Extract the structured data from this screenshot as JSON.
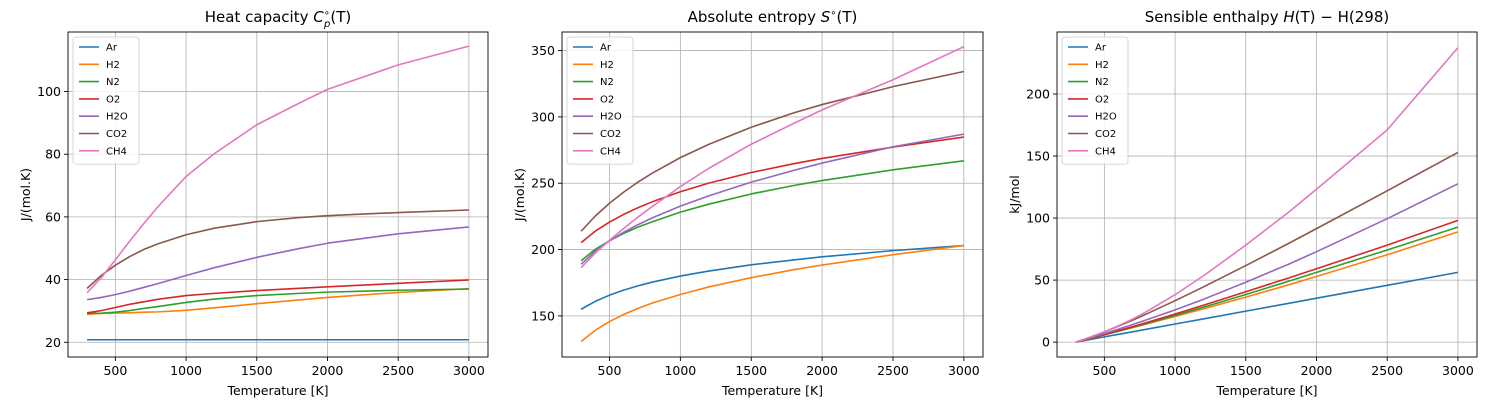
{
  "chart_data": [
    {
      "type": "line",
      "title": "Heat capacity Cₚ°(T)",
      "title_main": "Heat capacity ",
      "title_math": "C",
      "title_sub": "p",
      "title_sup": "∘",
      "title_tail": "(T)",
      "xlabel": "Temperature [K]",
      "ylabel": "J/(mol.K)",
      "xlim": [
        165,
        3135
      ],
      "ylim": [
        15.3,
        119
      ],
      "xticks": [
        500,
        1000,
        1500,
        2000,
        2500,
        3000
      ],
      "yticks": [
        20,
        40,
        60,
        80,
        100
      ],
      "grid": true,
      "legend": "top-left",
      "x": [
        300,
        400,
        500,
        600,
        700,
        800,
        1000,
        1200,
        1500,
        1800,
        2000,
        2500,
        3000
      ],
      "series": [
        {
          "name": "Ar",
          "color": "#1f77b4",
          "values": [
            20.8,
            20.8,
            20.8,
            20.8,
            20.8,
            20.8,
            20.8,
            20.8,
            20.8,
            20.8,
            20.8,
            20.8,
            20.8
          ]
        },
        {
          "name": "H2",
          "color": "#ff7f0e",
          "values": [
            28.9,
            29.2,
            29.3,
            29.4,
            29.6,
            29.7,
            30.2,
            31.0,
            32.3,
            33.5,
            34.3,
            35.9,
            37.1
          ]
        },
        {
          "name": "N2",
          "color": "#2ca02c",
          "values": [
            29.2,
            29.3,
            29.6,
            30.1,
            30.8,
            31.4,
            32.7,
            33.8,
            34.9,
            35.6,
            36.0,
            36.6,
            37.0
          ]
        },
        {
          "name": "O2",
          "color": "#d62728",
          "values": [
            29.4,
            30.1,
            31.1,
            32.1,
            32.9,
            33.7,
            34.9,
            35.6,
            36.5,
            37.2,
            37.7,
            38.8,
            39.9
          ]
        },
        {
          "name": "H2O",
          "color": "#9467bd",
          "values": [
            33.6,
            34.3,
            35.2,
            36.3,
            37.5,
            38.7,
            41.3,
            43.8,
            47.1,
            49.9,
            51.6,
            54.6,
            56.8
          ]
        },
        {
          "name": "CO2",
          "color": "#8c564b",
          "values": [
            37.2,
            41.3,
            44.6,
            47.3,
            49.6,
            51.4,
            54.3,
            56.4,
            58.5,
            59.8,
            60.4,
            61.4,
            62.2
          ]
        },
        {
          "name": "CH4",
          "color": "#e377c2",
          "values": [
            35.8,
            40.6,
            46.3,
            52.2,
            57.8,
            63.2,
            72.9,
            80.2,
            89.4,
            96.3,
            100.7,
            108.5,
            114.5
          ]
        }
      ]
    },
    {
      "type": "line",
      "title": "Absolute entropy S°(T)",
      "title_main": "Absolute entropy ",
      "title_math": "S",
      "title_sub": "",
      "title_sup": "∘",
      "title_tail": "(T)",
      "xlabel": "Temperature [K]",
      "ylabel": "J/(mol.K)",
      "xlim": [
        165,
        3135
      ],
      "ylim": [
        119,
        364
      ],
      "xticks": [
        500,
        1000,
        1500,
        2000,
        2500,
        3000
      ],
      "yticks": [
        150,
        200,
        250,
        300,
        350
      ],
      "grid": true,
      "legend": "top-left",
      "x": [
        300,
        400,
        500,
        600,
        700,
        800,
        1000,
        1200,
        1500,
        1800,
        2000,
        2500,
        3000
      ],
      "series": [
        {
          "name": "Ar",
          "color": "#1f77b4",
          "values": [
            155.0,
            161.0,
            165.6,
            169.4,
            172.6,
            175.4,
            180.0,
            183.8,
            188.5,
            192.2,
            194.5,
            199.2,
            203.0
          ]
        },
        {
          "name": "H2",
          "color": "#ff7f0e",
          "values": [
            130.7,
            139.2,
            145.7,
            151.1,
            155.6,
            159.6,
            166.1,
            171.8,
            178.8,
            184.8,
            188.3,
            196.1,
            203.0
          ]
        },
        {
          "name": "N2",
          "color": "#2ca02c",
          "values": [
            191.6,
            200.2,
            206.7,
            212.2,
            216.9,
            220.9,
            228.2,
            234.2,
            241.9,
            248.3,
            252.0,
            260.1,
            266.9
          ]
        },
        {
          "name": "O2",
          "color": "#d62728",
          "values": [
            205.2,
            213.9,
            220.7,
            226.5,
            231.5,
            235.9,
            243.6,
            250.1,
            258.1,
            264.7,
            268.7,
            277.2,
            284.8
          ]
        },
        {
          "name": "H2O",
          "color": "#9467bd",
          "values": [
            188.9,
            198.8,
            206.5,
            213.1,
            218.7,
            223.8,
            232.7,
            240.5,
            250.8,
            259.7,
            265.2,
            277.5,
            287.0
          ]
        },
        {
          "name": "CO2",
          "color": "#8c564b",
          "values": [
            213.8,
            225.3,
            234.9,
            243.3,
            250.8,
            257.5,
            269.3,
            279.3,
            292.2,
            303.0,
            309.3,
            322.8,
            334.2
          ]
        },
        {
          "name": "CH4",
          "color": "#e377c2",
          "values": [
            186.3,
            197.4,
            207.0,
            215.9,
            224.4,
            232.3,
            247.5,
            261.2,
            279.4,
            295.1,
            305.3,
            328.0,
            353.0
          ]
        }
      ]
    },
    {
      "type": "line",
      "title": "Sensible enthalpy H(T)−H(298)",
      "title_main": "Sensible enthalpy ",
      "title_math": "H",
      "title_sub": "",
      "title_sup": "",
      "title_tail": "(T) − H(298)",
      "xlabel": "Temperature [K]",
      "ylabel": "kJ/mol",
      "xlim": [
        165,
        3135
      ],
      "ylim": [
        -12,
        250
      ],
      "xticks": [
        500,
        1000,
        1500,
        2000,
        2500,
        3000
      ],
      "yticks": [
        0,
        50,
        100,
        150,
        200
      ],
      "grid": true,
      "legend": "top-left",
      "x": [
        300,
        400,
        500,
        600,
        700,
        800,
        1000,
        1200,
        1500,
        1800,
        2000,
        2500,
        3000
      ],
      "series": [
        {
          "name": "Ar",
          "color": "#1f77b4",
          "values": [
            0,
            2.1,
            4.2,
            6.3,
            8.3,
            10.4,
            14.6,
            18.7,
            25.0,
            31.2,
            35.4,
            45.8,
            56.2
          ]
        },
        {
          "name": "H2",
          "color": "#ff7f0e",
          "values": [
            0,
            2.9,
            5.9,
            8.8,
            11.7,
            14.7,
            20.7,
            26.8,
            36.3,
            46.1,
            52.9,
            70.4,
            88.9
          ]
        },
        {
          "name": "N2",
          "color": "#2ca02c",
          "values": [
            0,
            2.9,
            5.9,
            8.9,
            12.0,
            15.0,
            21.5,
            28.1,
            38.4,
            49.0,
            56.2,
            74.3,
            92.7
          ]
        },
        {
          "name": "O2",
          "color": "#d62728",
          "values": [
            0,
            3.0,
            6.1,
            9.2,
            12.5,
            15.8,
            22.7,
            29.7,
            40.6,
            51.6,
            59.1,
            78.2,
            98.1
          ]
        },
        {
          "name": "H2O",
          "color": "#9467bd",
          "values": [
            0,
            3.5,
            6.9,
            10.5,
            14.2,
            18.0,
            26.0,
            34.5,
            48.3,
            62.7,
            72.9,
            99.5,
            127.6
          ]
        },
        {
          "name": "CO2",
          "color": "#8c564b",
          "values": [
            0,
            4.0,
            8.3,
            12.9,
            17.7,
            22.8,
            33.4,
            44.5,
            61.7,
            79.4,
            91.5,
            122.0,
            152.9
          ]
        },
        {
          "name": "CH4",
          "color": "#e377c2",
          "values": [
            0,
            3.9,
            8.3,
            13.2,
            18.6,
            24.7,
            38.2,
            53.4,
            78.2,
            104.5,
            123.2,
            171.1,
            237.3
          ]
        }
      ]
    }
  ]
}
